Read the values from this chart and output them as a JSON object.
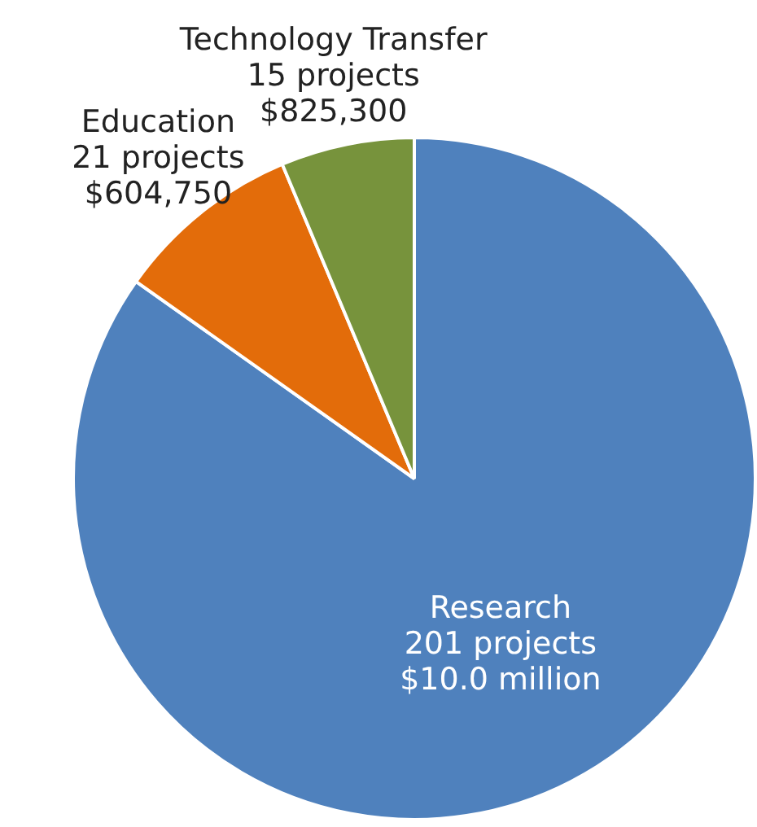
{
  "chart_data": {
    "type": "pie",
    "categories": [
      "Research",
      "Education",
      "Technology Transfer"
    ],
    "values": [
      201,
      21,
      15
    ],
    "value_labels": [
      "201 projects\n$10.0 million",
      "21 projects\n$604,750",
      "15 projects\n$825,300"
    ],
    "colors": [
      "#4f81bd",
      "#e36c0a",
      "#77933c"
    ],
    "legend": false
  }
}
